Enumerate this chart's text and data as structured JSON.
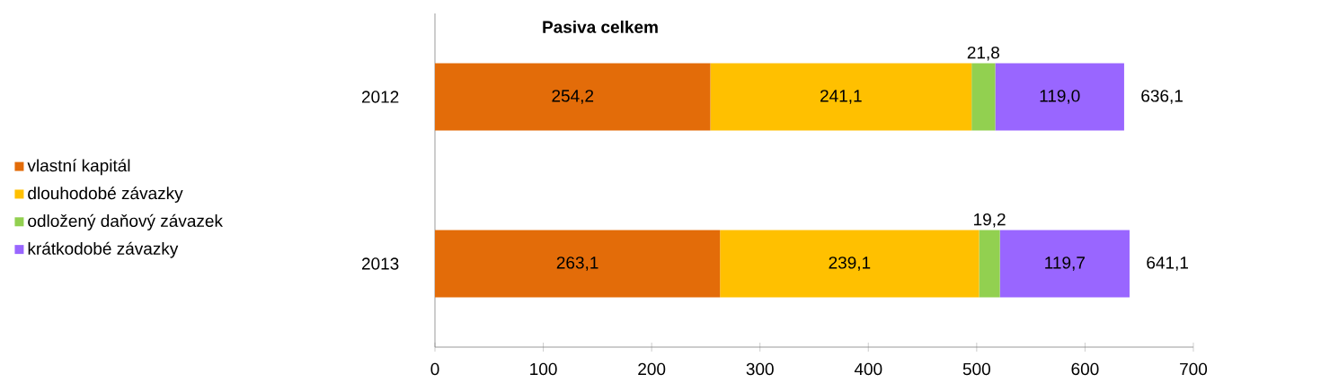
{
  "chart_data": {
    "type": "bar",
    "orientation": "horizontal",
    "stacked": true,
    "title": "Pasiva celkem",
    "categories": [
      "2012",
      "2013"
    ],
    "series": [
      {
        "name": "vlastní kapitál",
        "color": "#e36c09",
        "values": [
          254.2,
          263.1
        ],
        "value_labels": [
          "254,2",
          "263,1"
        ]
      },
      {
        "name": "dlouhodobé závazky",
        "color": "#ffc000",
        "values": [
          241.1,
          239.1
        ],
        "value_labels": [
          "241,1",
          "239,1"
        ]
      },
      {
        "name": "odložený daňový závazek",
        "color": "#92d050",
        "values": [
          21.8,
          19.2
        ],
        "value_labels": [
          "21,8",
          "19,2"
        ]
      },
      {
        "name": "krátkodobé závazky",
        "color": "#9966ff",
        "values": [
          119.0,
          119.7
        ],
        "value_labels": [
          "119,0",
          "119,7"
        ]
      }
    ],
    "totals": [
      "636,1",
      "641,1"
    ],
    "xlim": [
      0,
      700
    ],
    "xticks": [
      0,
      100,
      200,
      300,
      400,
      500,
      600,
      700
    ],
    "legend": "left",
    "grid": false
  }
}
